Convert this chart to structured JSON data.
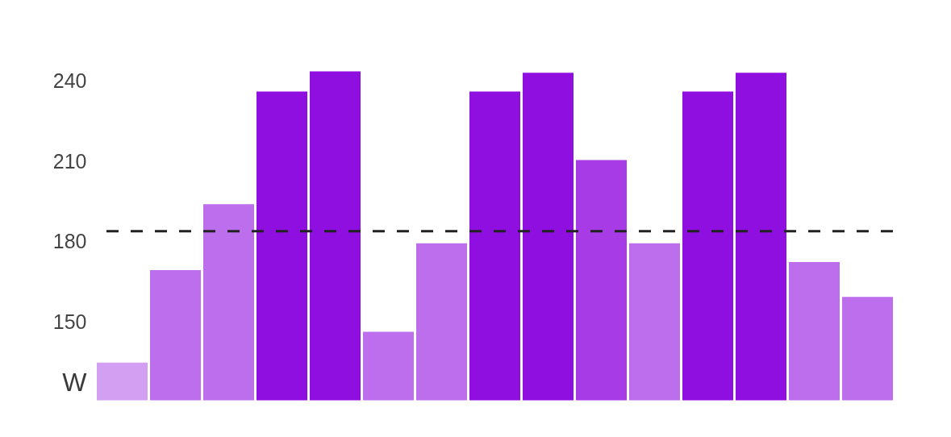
{
  "chart_data": {
    "type": "bar",
    "ylabel": "W",
    "categories": [
      null,
      null,
      null,
      null,
      null,
      null,
      null,
      null,
      null,
      null,
      null,
      null,
      null,
      null,
      null
    ],
    "values": [
      135,
      169.5,
      194,
      236,
      243.5,
      146.5,
      179.5,
      236,
      243,
      210.5,
      179.5,
      236,
      243,
      172.5,
      159.5
    ],
    "colors": [
      "#d29ff2",
      "#bc6eec",
      "#bc6eec",
      "#8f0fe0",
      "#8f0fe0",
      "#bc6eec",
      "#bc6eec",
      "#8f0fe0",
      "#8f0fe0",
      "#a73be6",
      "#bc6eec",
      "#8f0fe0",
      "#8f0fe0",
      "#bc6eec",
      "#bc6eec"
    ],
    "ylim": [
      121,
      243.5
    ],
    "yticks": [
      150,
      180,
      210,
      240
    ],
    "tick_labels": "y",
    "ref_lines": [
      {
        "axis": "y",
        "value": 184,
        "line_style": "dashed",
        "color": "#222222"
      }
    ]
  }
}
